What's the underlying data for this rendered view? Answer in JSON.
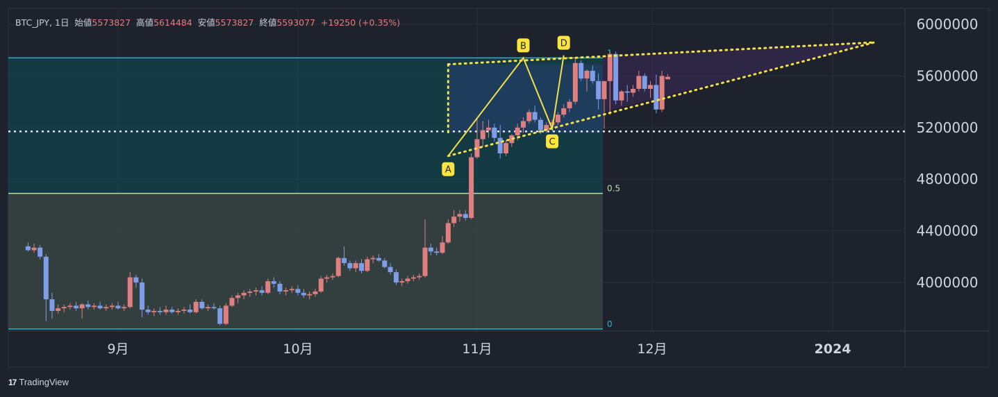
{
  "header": {
    "symbol": "BTC_JPY, 1日",
    "open_label": "始値",
    "open": "5573827",
    "high_label": "高値",
    "high": "5614484",
    "low_label": "安値",
    "low": "5573827",
    "close_label": "終値",
    "close": "5593077",
    "change": "+19250 (+0.35%)"
  },
  "brand": {
    "logo": "17",
    "name": "TradingView"
  },
  "chart_data": {
    "type": "candlestick",
    "y_ticks": [
      6000000,
      5600000,
      5200000,
      4800000,
      4400000,
      4000000
    ],
    "y_range": [
      3650000,
      6150000
    ],
    "x_labels": [
      "9月",
      "10月",
      "11月",
      "12月",
      "2024"
    ],
    "fib_levels": [
      {
        "label": "1",
        "value": 5740000
      },
      {
        "label": "0.5",
        "value": 4690000
      },
      {
        "label": "0",
        "value": 3640000
      }
    ],
    "dotted_level": 5170000,
    "pattern_labels": [
      "A",
      "B",
      "C",
      "D"
    ],
    "pattern_points": [
      {
        "label": "A",
        "date": "2023-10-27",
        "value": 4980000
      },
      {
        "label": "B",
        "date": "2023-11-09",
        "value": 5740000
      },
      {
        "label": "C",
        "date": "2023-11-14",
        "value": 5190000
      },
      {
        "label": "D",
        "date": "2023-11-16",
        "value": 5760000
      }
    ],
    "candles": [
      [
        4280000,
        4310000,
        4240000,
        4250000
      ],
      [
        4250000,
        4300000,
        4230000,
        4270000
      ],
      [
        4270000,
        4290000,
        4180000,
        4200000
      ],
      [
        4200000,
        4220000,
        3700000,
        3870000
      ],
      [
        3870000,
        3920000,
        3720000,
        3780000
      ],
      [
        3780000,
        3830000,
        3760000,
        3800000
      ],
      [
        3800000,
        3830000,
        3770000,
        3810000
      ],
      [
        3810000,
        3840000,
        3790000,
        3820000
      ],
      [
        3820000,
        3850000,
        3780000,
        3800000
      ],
      [
        3800000,
        3840000,
        3720000,
        3830000
      ],
      [
        3830000,
        3860000,
        3790000,
        3810000
      ],
      [
        3810000,
        3840000,
        3790000,
        3820000
      ],
      [
        3820000,
        3850000,
        3790000,
        3800000
      ],
      [
        3800000,
        3830000,
        3780000,
        3810000
      ],
      [
        3810000,
        3840000,
        3790000,
        3820000
      ],
      [
        3820000,
        3850000,
        3790000,
        3800000
      ],
      [
        3800000,
        3830000,
        3780000,
        3810000
      ],
      [
        3810000,
        4080000,
        3800000,
        4040000
      ],
      [
        4040000,
        4060000,
        3960000,
        4000000
      ],
      [
        4000000,
        4030000,
        3730000,
        3790000
      ],
      [
        3790000,
        3820000,
        3750000,
        3770000
      ],
      [
        3770000,
        3800000,
        3740000,
        3780000
      ],
      [
        3780000,
        3810000,
        3750000,
        3770000
      ],
      [
        3770000,
        3820000,
        3750000,
        3790000
      ],
      [
        3790000,
        3810000,
        3760000,
        3770000
      ],
      [
        3770000,
        3800000,
        3750000,
        3780000
      ],
      [
        3780000,
        3810000,
        3760000,
        3790000
      ],
      [
        3790000,
        3830000,
        3760000,
        3770000
      ],
      [
        3770000,
        3870000,
        3760000,
        3850000
      ],
      [
        3850000,
        3870000,
        3790000,
        3800000
      ],
      [
        3800000,
        3830000,
        3780000,
        3810000
      ],
      [
        3810000,
        3840000,
        3790000,
        3800000
      ],
      [
        3800000,
        3820000,
        3670000,
        3680000
      ],
      [
        3680000,
        3840000,
        3670000,
        3820000
      ],
      [
        3820000,
        3900000,
        3810000,
        3880000
      ],
      [
        3880000,
        3920000,
        3840000,
        3900000
      ],
      [
        3900000,
        3940000,
        3870000,
        3920000
      ],
      [
        3920000,
        3950000,
        3890000,
        3930000
      ],
      [
        3930000,
        3960000,
        3900000,
        3940000
      ],
      [
        3940000,
        3970000,
        3900000,
        3920000
      ],
      [
        3920000,
        4030000,
        3910000,
        4010000
      ],
      [
        4010000,
        4040000,
        3960000,
        3990000
      ],
      [
        3990000,
        4010000,
        3910000,
        3930000
      ],
      [
        3930000,
        3960000,
        3900000,
        3940000
      ],
      [
        3940000,
        3970000,
        3920000,
        3950000
      ],
      [
        3950000,
        3980000,
        3900000,
        3920000
      ],
      [
        3920000,
        3950000,
        3880000,
        3900000
      ],
      [
        3900000,
        3930000,
        3870000,
        3910000
      ],
      [
        3910000,
        3950000,
        3890000,
        3930000
      ],
      [
        3930000,
        4050000,
        3920000,
        4030000
      ],
      [
        4030000,
        4060000,
        4000000,
        4040000
      ],
      [
        4040000,
        4070000,
        4020000,
        4050000
      ],
      [
        4050000,
        4200000,
        4040000,
        4190000
      ],
      [
        4190000,
        4280000,
        4130000,
        4150000
      ],
      [
        4150000,
        4170000,
        4090000,
        4110000
      ],
      [
        4110000,
        4170000,
        4080000,
        4150000
      ],
      [
        4150000,
        4180000,
        4070000,
        4090000
      ],
      [
        4090000,
        4200000,
        4080000,
        4180000
      ],
      [
        4180000,
        4210000,
        4150000,
        4190000
      ],
      [
        4190000,
        4220000,
        4160000,
        4170000
      ],
      [
        4170000,
        4190000,
        4110000,
        4120000
      ],
      [
        4120000,
        4150000,
        4060000,
        4080000
      ],
      [
        4080000,
        4100000,
        3980000,
        4000000
      ],
      [
        4000000,
        4030000,
        3970000,
        4010000
      ],
      [
        4010000,
        4050000,
        3990000,
        4030000
      ],
      [
        4030000,
        4060000,
        4010000,
        4040000
      ],
      [
        4040000,
        4070000,
        4020000,
        4050000
      ],
      [
        4050000,
        4490000,
        4040000,
        4270000
      ],
      [
        4270000,
        4300000,
        4210000,
        4240000
      ],
      [
        4240000,
        4270000,
        4210000,
        4230000
      ],
      [
        4230000,
        4360000,
        4220000,
        4310000
      ],
      [
        4310000,
        4490000,
        4300000,
        4460000
      ],
      [
        4460000,
        4560000,
        4430000,
        4510000
      ],
      [
        4510000,
        4560000,
        4470000,
        4530000
      ],
      [
        4530000,
        4560000,
        4480000,
        4500000
      ],
      [
        4500000,
        5000000,
        4490000,
        4970000
      ],
      [
        4970000,
        5270000,
        4960000,
        5110000
      ],
      [
        5110000,
        5250000,
        5050000,
        5180000
      ],
      [
        5180000,
        5260000,
        5120000,
        5200000
      ],
      [
        5200000,
        5230000,
        5090000,
        5120000
      ],
      [
        5120000,
        5220000,
        4960000,
        5000000
      ],
      [
        5000000,
        5100000,
        4980000,
        5080000
      ],
      [
        5080000,
        5150000,
        5050000,
        5140000
      ],
      [
        5140000,
        5230000,
        5100000,
        5200000
      ],
      [
        5200000,
        5280000,
        5160000,
        5250000
      ],
      [
        5250000,
        5340000,
        5230000,
        5320000
      ],
      [
        5320000,
        5370000,
        5240000,
        5260000
      ],
      [
        5260000,
        5280000,
        5150000,
        5180000
      ],
      [
        5180000,
        5240000,
        5160000,
        5220000
      ],
      [
        5220000,
        5260000,
        5180000,
        5240000
      ],
      [
        5240000,
        5320000,
        5220000,
        5300000
      ],
      [
        5300000,
        5380000,
        5280000,
        5350000
      ],
      [
        5350000,
        5420000,
        5320000,
        5400000
      ],
      [
        5400000,
        5740000,
        5380000,
        5700000
      ],
      [
        5700000,
        5720000,
        5560000,
        5580000
      ],
      [
        5580000,
        5650000,
        5480000,
        5640000
      ],
      [
        5640000,
        5680000,
        5540000,
        5560000
      ],
      [
        5560000,
        5620000,
        5340000,
        5420000
      ],
      [
        5420000,
        5560000,
        5190000,
        5560000
      ],
      [
        5560000,
        5790000,
        5300000,
        5770000
      ],
      [
        5770000,
        5790000,
        5380000,
        5410000
      ],
      [
        5410000,
        5490000,
        5370000,
        5480000
      ],
      [
        5480000,
        5530000,
        5400000,
        5470000
      ],
      [
        5470000,
        5530000,
        5440000,
        5500000
      ],
      [
        5500000,
        5640000,
        5480000,
        5600000
      ],
      [
        5600000,
        5620000,
        5480000,
        5500000
      ],
      [
        5500000,
        5560000,
        5430000,
        5530000
      ],
      [
        5530000,
        5610000,
        5310000,
        5340000
      ],
      [
        5340000,
        5640000,
        5320000,
        5600000
      ],
      [
        5573827,
        5614484,
        5573827,
        5593077
      ]
    ]
  }
}
